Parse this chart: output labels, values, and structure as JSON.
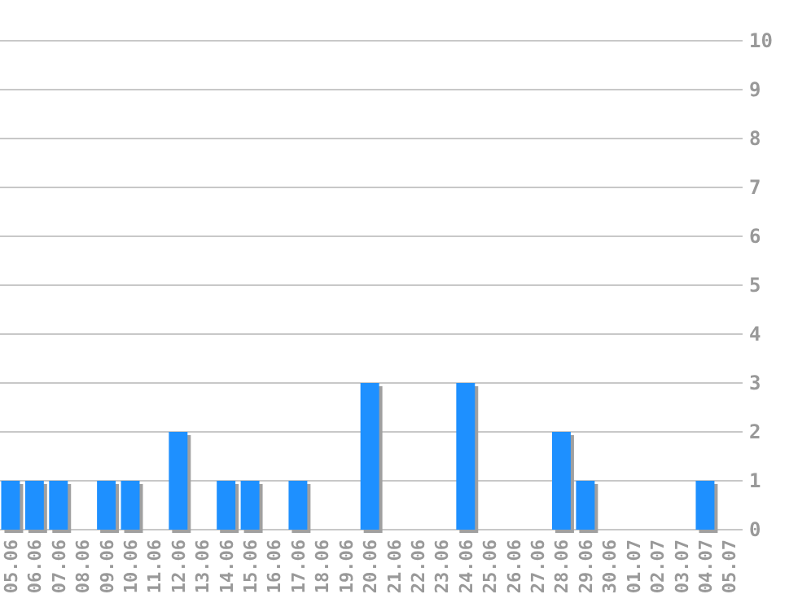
{
  "chart_data": {
    "type": "bar",
    "categories": [
      "05.06",
      "06.06",
      "07.06",
      "08.06",
      "09.06",
      "10.06",
      "11.06",
      "12.06",
      "13.06",
      "14.06",
      "15.06",
      "16.06",
      "17.06",
      "18.06",
      "19.06",
      "20.06",
      "21.06",
      "22.06",
      "23.06",
      "24.06",
      "25.06",
      "26.06",
      "27.06",
      "28.06",
      "29.06",
      "30.06",
      "01.07",
      "02.07",
      "03.07",
      "04.07",
      "05.07"
    ],
    "values": [
      1,
      1,
      1,
      0,
      1,
      1,
      0,
      2,
      0,
      1,
      1,
      0,
      1,
      0,
      0,
      3,
      0,
      0,
      0,
      3,
      0,
      0,
      0,
      2,
      1,
      0,
      0,
      0,
      0,
      1,
      0
    ],
    "color": "#1e90ff",
    "ylim": [
      0,
      10
    ],
    "yticks": [
      0,
      1,
      2,
      3,
      4,
      5,
      6,
      7,
      8,
      9,
      10
    ],
    "grid": "y"
  }
}
